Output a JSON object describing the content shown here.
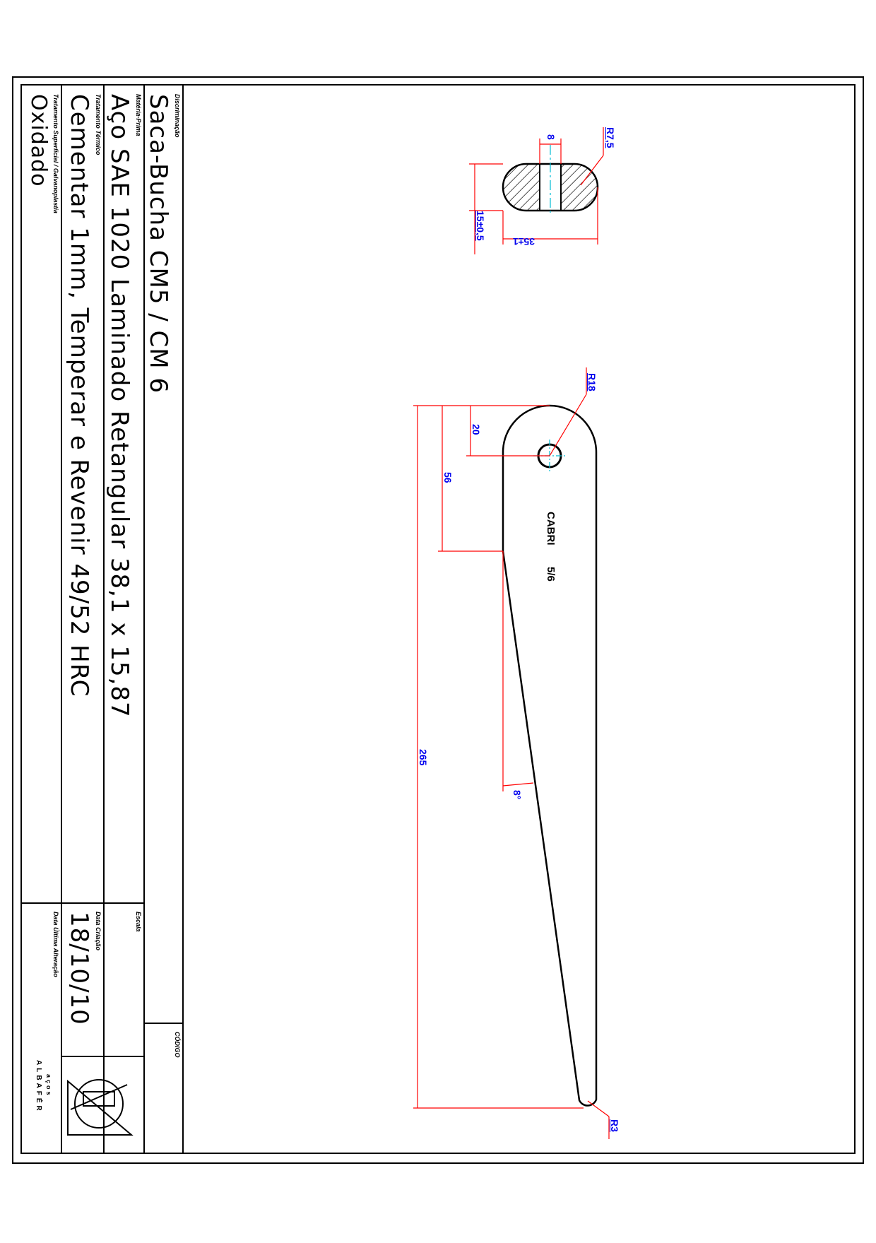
{
  "title_block": {
    "descricao_label": "Discriminação",
    "descricao_value": "Saca-Bucha CM5 / CM 6",
    "materia_label": "Matéria-Prima",
    "materia_value": "Aço SAE 1020 Laminado Retangular 38,1 x 15,87",
    "tratamento_label": "Tratamento Térmico",
    "tratamento_value": "Cementar 1mm, Temperar e Revenir 49/52 HRC",
    "superficial_label": "Tratamento Superficial / Galvanoplastia",
    "superficial_value": "Oxidado",
    "codigo_label": "CÓDIGO",
    "escala_label": "Escala",
    "data_criacao_label": "Data Criação",
    "data_criacao_value": "18/10/10",
    "data_alteracao_label": "Data Última Alteração",
    "logo_name": "ALBAFÉR",
    "logo_sub": "aços"
  },
  "section_view": {
    "dim_radius": "R7,5",
    "dim_slot": "8",
    "dim_thickness": "15±0,5",
    "dim_width": "35±1"
  },
  "main_view": {
    "dim_radius_hole": "R18",
    "dim_hole_pos": "20",
    "dim_taper_start": "56",
    "dim_length": "265",
    "dim_angle": "8°",
    "dim_tip_radius": "R3",
    "engraving_1": "CABRI",
    "engraving_2": "5/6"
  },
  "colors": {
    "outline": "#000000",
    "dimension": "#ff0000",
    "dimension_text": "#0000ee",
    "centerline": "#00bcd4"
  }
}
